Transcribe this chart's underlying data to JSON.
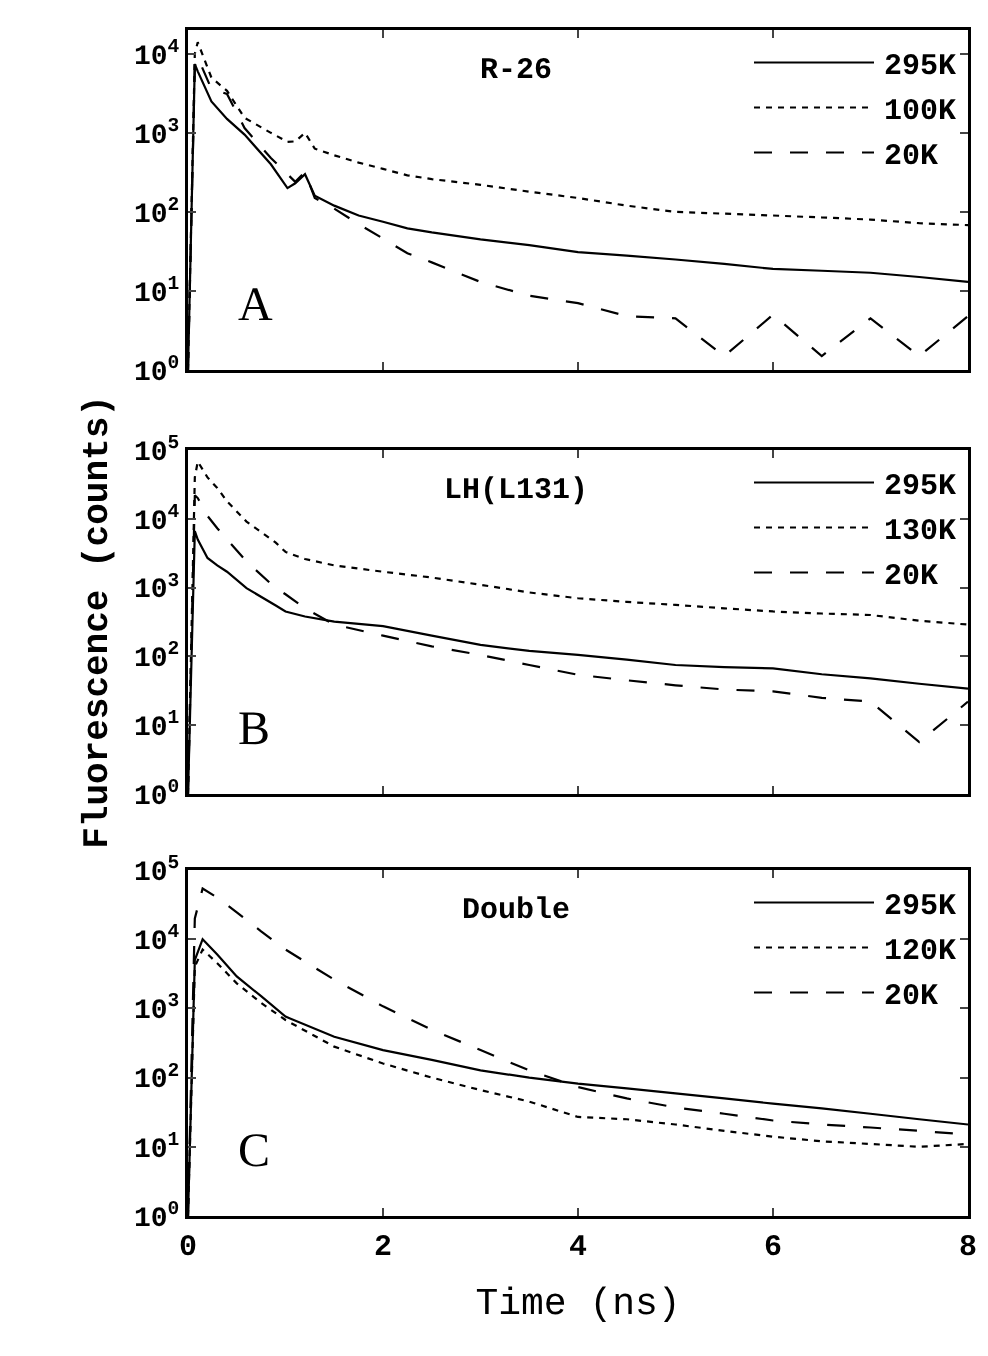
{
  "chart_data": [
    {
      "type": "line",
      "title": "R-26",
      "annotations": [
        "A"
      ],
      "log": "y",
      "legend": "top right",
      "tick_labels": "y",
      "marker": "none",
      "grid": false,
      "x": [
        0,
        0.07,
        0.1,
        0.24,
        0.4,
        0.58,
        0.85,
        1.02,
        1.1,
        1.2,
        1.3,
        1.5,
        1.75,
        2,
        2.25,
        2.5,
        3,
        3.5,
        4,
        4.5,
        5,
        5.5,
        6,
        6.5,
        7,
        7.5,
        8
      ],
      "xlim": [
        0,
        8
      ],
      "xticks": [
        0,
        2,
        4,
        6,
        8
      ],
      "ylim": [
        1,
        20000
      ],
      "yticks": [
        {
          "value": 1,
          "label": "10$^{0}$"
        },
        {
          "value": 10,
          "label": "10$^{1}$"
        },
        {
          "value": 100,
          "label": "10$^{2}$"
        },
        {
          "value": 1000,
          "label": "10$^{3}$"
        },
        {
          "value": 10000,
          "label": "10$^{4}$"
        }
      ],
      "series": [
        {
          "name": "295K",
          "color": "#000000",
          "line_style": "solid",
          "values": [
            1,
            7400,
            6000,
            2500,
            1500,
            950,
            400,
            200,
            230,
            300,
            160,
            120,
            90,
            75,
            62,
            55,
            45,
            38,
            31,
            28,
            25,
            22,
            19,
            18,
            17,
            15,
            13
          ]
        },
        {
          "name": "100K",
          "color": "#000000",
          "line_style": "dotted",
          "values": [
            1,
            10000,
            14000,
            5000,
            3400,
            1550,
            1000,
            770,
            780,
            1000,
            630,
            520,
            420,
            350,
            290,
            260,
            220,
            180,
            150,
            120,
            100,
            95,
            90,
            85,
            80,
            72,
            68
          ]
        },
        {
          "name": "20K",
          "color": "#000000",
          "line_style": "dashed",
          "values": [
            1,
            7000,
            9000,
            3600,
            3100,
            1150,
            480,
            300,
            240,
            320,
            150,
            110,
            70,
            46,
            30,
            23,
            13,
            8.7,
            7,
            4.8,
            4.5,
            1.5,
            5,
            1.5,
            4.5,
            1.5,
            4.8
          ]
        }
      ]
    },
    {
      "type": "line",
      "title": "LH(L131)",
      "ylabel": "Fluorescence (counts)",
      "annotations": [
        "B"
      ],
      "log": "y",
      "legend": "top right",
      "tick_labels": "y",
      "marker": "none",
      "grid": false,
      "x": [
        0,
        0.07,
        0.1,
        0.2,
        0.3,
        0.4,
        0.6,
        0.9,
        1,
        1.2,
        1.5,
        2,
        2.5,
        3,
        3.5,
        4,
        4.5,
        5,
        5.5,
        6,
        6.5,
        7,
        7.5,
        8
      ],
      "xlim": [
        0,
        8
      ],
      "xticks": [
        0,
        2,
        4,
        6,
        8
      ],
      "ylim": [
        1,
        100000
      ],
      "yticks": [
        {
          "value": 1,
          "label": "10$^{0}$"
        },
        {
          "value": 10,
          "label": "10$^{1}$"
        },
        {
          "value": 100,
          "label": "10$^{2}$"
        },
        {
          "value": 1000,
          "label": "10$^{3}$"
        },
        {
          "value": 10000,
          "label": "10$^{4}$"
        },
        {
          "value": 100000,
          "label": "10$^{5}$"
        }
      ],
      "series": [
        {
          "name": "295K",
          "color": "#000000",
          "line_style": "solid",
          "values": [
            1,
            6600,
            5000,
            2700,
            2100,
            1700,
            980,
            550,
            450,
            380,
            320,
            275,
            200,
            147,
            120,
            105,
            90,
            75,
            70,
            67,
            55,
            48,
            40,
            34
          ]
        },
        {
          "name": "130K",
          "color": "#000000",
          "line_style": "dotted",
          "values": [
            1,
            40000,
            68000,
            40000,
            28000,
            18000,
            9100,
            4500,
            3300,
            2600,
            2100,
            1700,
            1400,
            1100,
            850,
            700,
            620,
            560,
            500,
            450,
            420,
            400,
            330,
            290
          ]
        },
        {
          "name": "20K",
          "color": "#000000",
          "line_style": "dashed",
          "values": [
            1,
            22000,
            20000,
            11000,
            7300,
            5000,
            2400,
            980,
            800,
            500,
            290,
            200,
            140,
            105,
            75,
            54,
            45,
            38,
            33,
            31,
            25,
            22,
            5.7,
            22
          ]
        }
      ]
    },
    {
      "type": "line",
      "title": "Double",
      "xlabel": "Time (ns)",
      "annotations": [
        "C"
      ],
      "log": "y",
      "legend": "top right",
      "marker": "none",
      "grid": false,
      "x": [
        0,
        0.07,
        0.15,
        0.3,
        0.5,
        0.75,
        1,
        1.5,
        2,
        2.5,
        3,
        3.5,
        4,
        4.5,
        5,
        5.5,
        6,
        6.5,
        7,
        7.5,
        8
      ],
      "xlim": [
        0,
        8
      ],
      "xticks": [
        0,
        2,
        4,
        6,
        8
      ],
      "ylim": [
        1,
        100000
      ],
      "yticks": [
        {
          "value": 1,
          "label": "10$^{0}$"
        },
        {
          "value": 10,
          "label": "10$^{1}$"
        },
        {
          "value": 100,
          "label": "10$^{2}$"
        },
        {
          "value": 1000,
          "label": "10$^{3}$"
        },
        {
          "value": 10000,
          "label": "10$^{4}$"
        },
        {
          "value": 100000,
          "label": "10$^{5}$"
        }
      ],
      "series": [
        {
          "name": "295K",
          "color": "#000000",
          "line_style": "solid",
          "values": [
            1,
            5000,
            10000,
            6000,
            2900,
            1500,
            760,
            390,
            250,
            180,
            127,
            100,
            82,
            70,
            59,
            50,
            42,
            36,
            30,
            25,
            21
          ]
        },
        {
          "name": "120K",
          "color": "#000000",
          "line_style": "dotted",
          "values": [
            1,
            4000,
            7100,
            4500,
            2300,
            1200,
            680,
            280,
            160,
            100,
            66,
            45,
            27,
            25,
            21,
            17,
            14,
            12,
            11,
            10,
            11
          ]
        },
        {
          "name": "20K",
          "color": "#000000",
          "line_style": "dashed",
          "values": [
            1,
            20000,
            54000,
            40000,
            24500,
            13000,
            7100,
            2600,
            1070,
            490,
            250,
            127,
            73,
            50,
            37,
            30,
            24,
            21,
            19,
            17,
            15
          ]
        }
      ]
    }
  ]
}
